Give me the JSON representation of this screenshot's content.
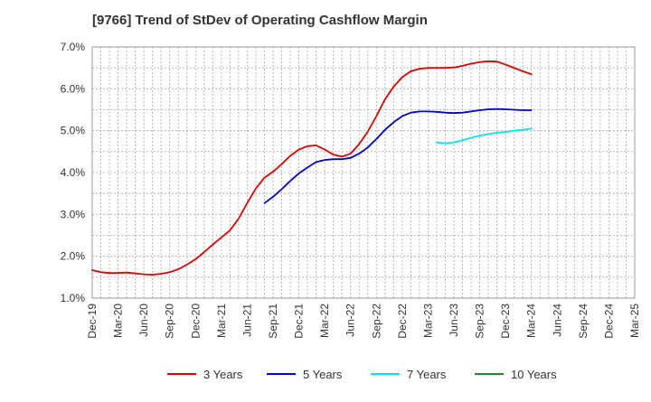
{
  "chart_data": {
    "type": "line",
    "title": "[9766]  Trend of StDev of Operating Cashflow Margin",
    "xlabel": "",
    "ylabel": "",
    "ylim": [
      1.0,
      7.0
    ],
    "yticks": [
      "1.0%",
      "2.0%",
      "3.0%",
      "4.0%",
      "5.0%",
      "6.0%",
      "7.0%"
    ],
    "xticks": [
      "Dec-19",
      "Mar-20",
      "Jun-20",
      "Sep-20",
      "Dec-20",
      "Mar-21",
      "Jun-21",
      "Sep-21",
      "Dec-21",
      "Mar-22",
      "Jun-22",
      "Sep-22",
      "Dec-22",
      "Mar-23",
      "Jun-23",
      "Sep-23",
      "Dec-23",
      "Mar-24",
      "Jun-24",
      "Sep-24",
      "Dec-24",
      "Mar-25"
    ],
    "grid": true,
    "legend_position": "bottom",
    "series": [
      {
        "name": "3 Years",
        "color": "#dd0000",
        "values": [
          1.67,
          1.62,
          1.6,
          1.6,
          1.61,
          1.59,
          1.57,
          1.56,
          1.58,
          1.62,
          1.69,
          1.8,
          1.93,
          2.1,
          2.28,
          2.45,
          2.62,
          2.9,
          3.27,
          3.62,
          3.88,
          4.02,
          4.2,
          4.4,
          4.55,
          4.63,
          4.65,
          4.55,
          4.43,
          4.38,
          4.45,
          4.68,
          4.98,
          5.35,
          5.75,
          6.05,
          6.28,
          6.42,
          6.48,
          6.5,
          6.5,
          6.5,
          6.51,
          6.55,
          6.6,
          6.64,
          6.66,
          6.65,
          6.58,
          6.5,
          6.42,
          6.35
        ]
      },
      {
        "name": "5 Years",
        "color": "#0000cc",
        "values": [
          null,
          null,
          null,
          null,
          null,
          null,
          null,
          null,
          null,
          null,
          null,
          null,
          null,
          null,
          null,
          null,
          null,
          null,
          null,
          null,
          3.27,
          3.42,
          3.6,
          3.8,
          3.98,
          4.12,
          4.25,
          4.3,
          4.32,
          4.32,
          4.35,
          4.45,
          4.6,
          4.8,
          5.02,
          5.2,
          5.35,
          5.43,
          5.46,
          5.46,
          5.45,
          5.43,
          5.42,
          5.43,
          5.46,
          5.49,
          5.51,
          5.52,
          5.51,
          5.5,
          5.49,
          5.49
        ]
      },
      {
        "name": "7 Years",
        "color": "#00e5ee",
        "values": [
          null,
          null,
          null,
          null,
          null,
          null,
          null,
          null,
          null,
          null,
          null,
          null,
          null,
          null,
          null,
          null,
          null,
          null,
          null,
          null,
          null,
          null,
          null,
          null,
          null,
          null,
          null,
          null,
          null,
          null,
          null,
          null,
          null,
          null,
          null,
          null,
          null,
          null,
          null,
          null,
          4.72,
          4.7,
          4.72,
          4.77,
          4.83,
          4.88,
          4.92,
          4.95,
          4.97,
          5.0,
          5.02,
          5.05
        ]
      },
      {
        "name": "10 Years",
        "color": "#228b22",
        "values": []
      }
    ]
  }
}
